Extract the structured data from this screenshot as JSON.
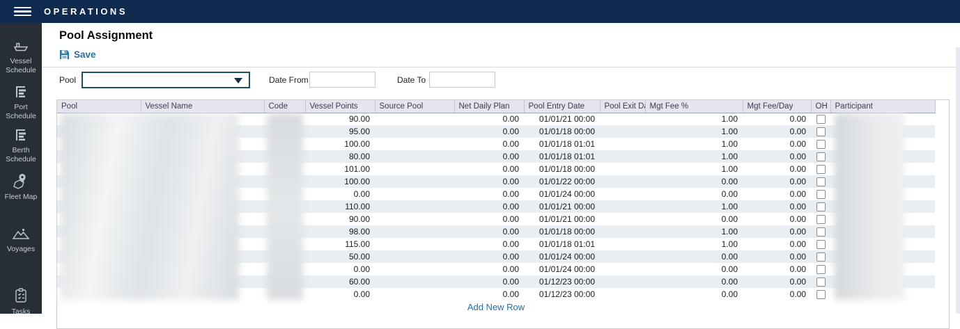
{
  "app": {
    "title": "OPERATIONS"
  },
  "colors": {
    "topbar_bg": "#0e2a4e",
    "sidebar_bg": "#282e35",
    "accent_blue": "#2b6f9f",
    "link_blue": "#1e6fb8",
    "row_alt": "#e9eef3",
    "grid_header_bg": "#e4e5ef",
    "select_border": "#1e4f63"
  },
  "sidebar": {
    "items": [
      {
        "label": "Vessel Schedule",
        "icon": "vessel-icon"
      },
      {
        "label": "Port Schedule",
        "icon": "schedule-icon"
      },
      {
        "label": "Berth Schedule",
        "icon": "schedule-icon"
      },
      {
        "label": "Fleet Map",
        "icon": "map-pin-icon"
      },
      {
        "label": "Voyages",
        "icon": "mountains-icon"
      },
      {
        "label": "Tasks",
        "icon": "checklist-icon"
      }
    ]
  },
  "page": {
    "title": "Pool Assignment",
    "save_label": "Save",
    "add_new_row_label": "Add New Row"
  },
  "filters": {
    "pool_label": "Pool",
    "pool_value": "",
    "date_from_label": "Date From",
    "date_from_value": "",
    "date_to_label": "Date To",
    "date_to_value": ""
  },
  "table": {
    "columns": [
      "Pool",
      "Vessel Name",
      "Code",
      "Vessel Points",
      "Source Pool",
      "Net Daily Plan",
      "Pool Entry Date",
      "Pool Exit Date",
      "Mgt Fee %",
      "Mgt Fee/Day",
      "OH",
      "Participant"
    ],
    "redacted_columns": [
      "Pool",
      "Vessel Name",
      "Code",
      "Participant"
    ],
    "rows": [
      {
        "pool": "",
        "vessel_name": "",
        "code": "",
        "vessel_points": "90.00",
        "source_pool": "",
        "net_daily_plan": "0.00",
        "pool_entry_date": "01/01/21 00:00",
        "pool_exit_date": "",
        "mgt_fee_pct": "1.00",
        "mgt_fee_day": "0.00",
        "oh_checked": false,
        "participant": ""
      },
      {
        "pool": "",
        "vessel_name": "",
        "code": "",
        "vessel_points": "95.00",
        "source_pool": "",
        "net_daily_plan": "0.00",
        "pool_entry_date": "01/01/18 00:00",
        "pool_exit_date": "",
        "mgt_fee_pct": "1.00",
        "mgt_fee_day": "0.00",
        "oh_checked": false,
        "participant": ""
      },
      {
        "pool": "",
        "vessel_name": "",
        "code": "",
        "vessel_points": "100.00",
        "source_pool": "",
        "net_daily_plan": "0.00",
        "pool_entry_date": "01/01/18 01:01",
        "pool_exit_date": "",
        "mgt_fee_pct": "1.00",
        "mgt_fee_day": "0.00",
        "oh_checked": false,
        "participant": ""
      },
      {
        "pool": "",
        "vessel_name": "",
        "code": "",
        "vessel_points": "80.00",
        "source_pool": "",
        "net_daily_plan": "0.00",
        "pool_entry_date": "01/01/18 01:01",
        "pool_exit_date": "",
        "mgt_fee_pct": "1.00",
        "mgt_fee_day": "0.00",
        "oh_checked": false,
        "participant": ""
      },
      {
        "pool": "",
        "vessel_name": "",
        "code": "",
        "vessel_points": "101.00",
        "source_pool": "",
        "net_daily_plan": "0.00",
        "pool_entry_date": "01/01/18 00:00",
        "pool_exit_date": "",
        "mgt_fee_pct": "1.00",
        "mgt_fee_day": "0.00",
        "oh_checked": false,
        "participant": ""
      },
      {
        "pool": "",
        "vessel_name": "",
        "code": "",
        "vessel_points": "100.00",
        "source_pool": "",
        "net_daily_plan": "0.00",
        "pool_entry_date": "01/01/22 00:00",
        "pool_exit_date": "",
        "mgt_fee_pct": "0.00",
        "mgt_fee_day": "0.00",
        "oh_checked": false,
        "participant": ""
      },
      {
        "pool": "",
        "vessel_name": "",
        "code": "",
        "vessel_points": "0.00",
        "source_pool": "",
        "net_daily_plan": "0.00",
        "pool_entry_date": "01/01/24 00:00",
        "pool_exit_date": "",
        "mgt_fee_pct": "0.00",
        "mgt_fee_day": "0.00",
        "oh_checked": false,
        "participant": ""
      },
      {
        "pool": "",
        "vessel_name": "",
        "code": "",
        "vessel_points": "110.00",
        "source_pool": "",
        "net_daily_plan": "0.00",
        "pool_entry_date": "01/01/21 00:00",
        "pool_exit_date": "",
        "mgt_fee_pct": "1.00",
        "mgt_fee_day": "0.00",
        "oh_checked": false,
        "participant": ""
      },
      {
        "pool": "",
        "vessel_name": "",
        "code": "",
        "vessel_points": "90.00",
        "source_pool": "",
        "net_daily_plan": "0.00",
        "pool_entry_date": "01/01/21 00:00",
        "pool_exit_date": "",
        "mgt_fee_pct": "0.00",
        "mgt_fee_day": "0.00",
        "oh_checked": false,
        "participant": ""
      },
      {
        "pool": "",
        "vessel_name": "",
        "code": "",
        "vessel_points": "98.00",
        "source_pool": "",
        "net_daily_plan": "0.00",
        "pool_entry_date": "01/01/18 00:00",
        "pool_exit_date": "",
        "mgt_fee_pct": "1.00",
        "mgt_fee_day": "0.00",
        "oh_checked": false,
        "participant": ""
      },
      {
        "pool": "",
        "vessel_name": "",
        "code": "",
        "vessel_points": "115.00",
        "source_pool": "",
        "net_daily_plan": "0.00",
        "pool_entry_date": "01/01/18 01:01",
        "pool_exit_date": "",
        "mgt_fee_pct": "1.00",
        "mgt_fee_day": "0.00",
        "oh_checked": false,
        "participant": ""
      },
      {
        "pool": "",
        "vessel_name": "",
        "code": "",
        "vessel_points": "50.00",
        "source_pool": "",
        "net_daily_plan": "0.00",
        "pool_entry_date": "01/01/24 00:00",
        "pool_exit_date": "",
        "mgt_fee_pct": "0.00",
        "mgt_fee_day": "0.00",
        "oh_checked": false,
        "participant": ""
      },
      {
        "pool": "",
        "vessel_name": "",
        "code": "",
        "vessel_points": "0.00",
        "source_pool": "",
        "net_daily_plan": "0.00",
        "pool_entry_date": "01/01/24 00:00",
        "pool_exit_date": "",
        "mgt_fee_pct": "0.00",
        "mgt_fee_day": "0.00",
        "oh_checked": false,
        "participant": ""
      },
      {
        "pool": "",
        "vessel_name": "",
        "code": "",
        "vessel_points": "60.00",
        "source_pool": "",
        "net_daily_plan": "0.00",
        "pool_entry_date": "01/12/23 00:00",
        "pool_exit_date": "",
        "mgt_fee_pct": "0.00",
        "mgt_fee_day": "0.00",
        "oh_checked": false,
        "participant": ""
      },
      {
        "pool": "",
        "vessel_name": "",
        "code": "",
        "vessel_points": "0.00",
        "source_pool": "",
        "net_daily_plan": "0.00",
        "pool_entry_date": "01/12/23 00:00",
        "pool_exit_date": "",
        "mgt_fee_pct": "0.00",
        "mgt_fee_day": "0.00",
        "oh_checked": false,
        "participant": ""
      }
    ]
  }
}
